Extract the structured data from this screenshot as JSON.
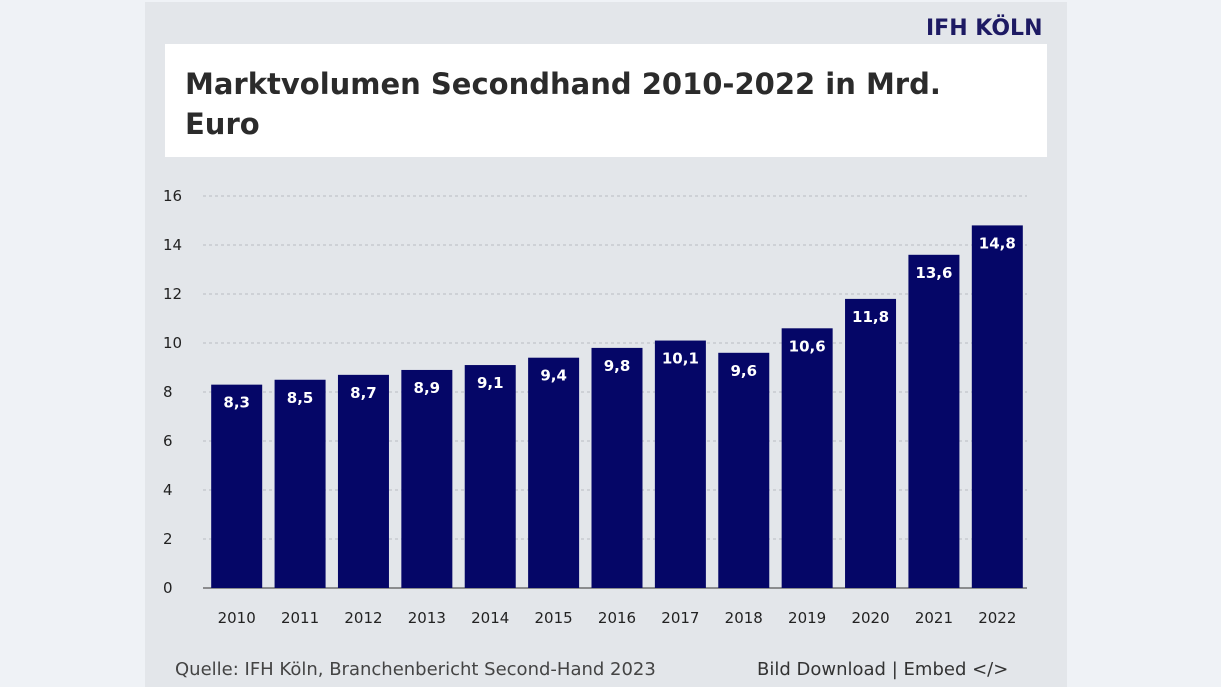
{
  "brand": {
    "logo_text": "IFH KÖLN",
    "bar_color": "#050667"
  },
  "chart_data": {
    "type": "bar",
    "title": "Marktvolumen Secondhand 2010-2022 in Mrd. Euro",
    "categories": [
      "2010",
      "2011",
      "2012",
      "2013",
      "2014",
      "2015",
      "2016",
      "2017",
      "2018",
      "2019",
      "2020",
      "2021",
      "2022"
    ],
    "values": [
      8.3,
      8.5,
      8.7,
      8.9,
      9.1,
      9.4,
      9.8,
      10.1,
      9.6,
      10.6,
      11.8,
      13.6,
      14.8
    ],
    "data_labels": [
      "8,3",
      "8,5",
      "8,7",
      "8,9",
      "9,1",
      "9,4",
      "9,8",
      "10,1",
      "9,6",
      "10,6",
      "11,8",
      "13,6",
      "14,8"
    ],
    "yticks": [
      "0",
      "2",
      "4",
      "6",
      "8",
      "10",
      "12",
      "14",
      "16"
    ],
    "ylim": [
      0,
      16
    ],
    "grid": true,
    "xlabel": "",
    "ylabel": ""
  },
  "footer": {
    "source": "Quelle:  IFH Köln, Branchenbericht Second-Hand 2023",
    "download_label": "Bild Download",
    "separator": "|",
    "embed_label": "Embed </>"
  }
}
